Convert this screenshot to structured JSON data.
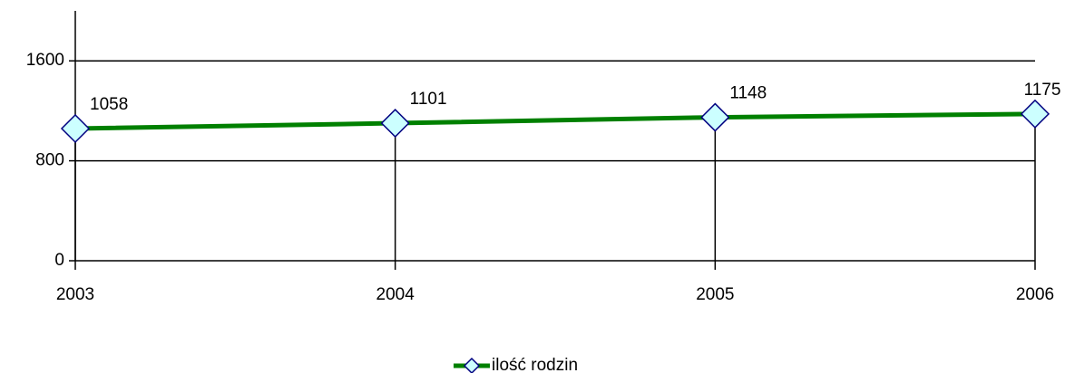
{
  "chart_data": {
    "type": "line",
    "categories": [
      "2003",
      "2004",
      "2005",
      "2006"
    ],
    "series": [
      {
        "name": "ilość rodzin",
        "color": "#008000",
        "marker_fill": "#ccffff",
        "marker_stroke": "#000080",
        "values": [
          1058,
          1101,
          1148,
          1175
        ]
      }
    ],
    "ylim": [
      0,
      2000
    ],
    "yticks": [
      0,
      800,
      1600
    ],
    "grid": true,
    "drop_lines": true,
    "legend": "bottom"
  }
}
